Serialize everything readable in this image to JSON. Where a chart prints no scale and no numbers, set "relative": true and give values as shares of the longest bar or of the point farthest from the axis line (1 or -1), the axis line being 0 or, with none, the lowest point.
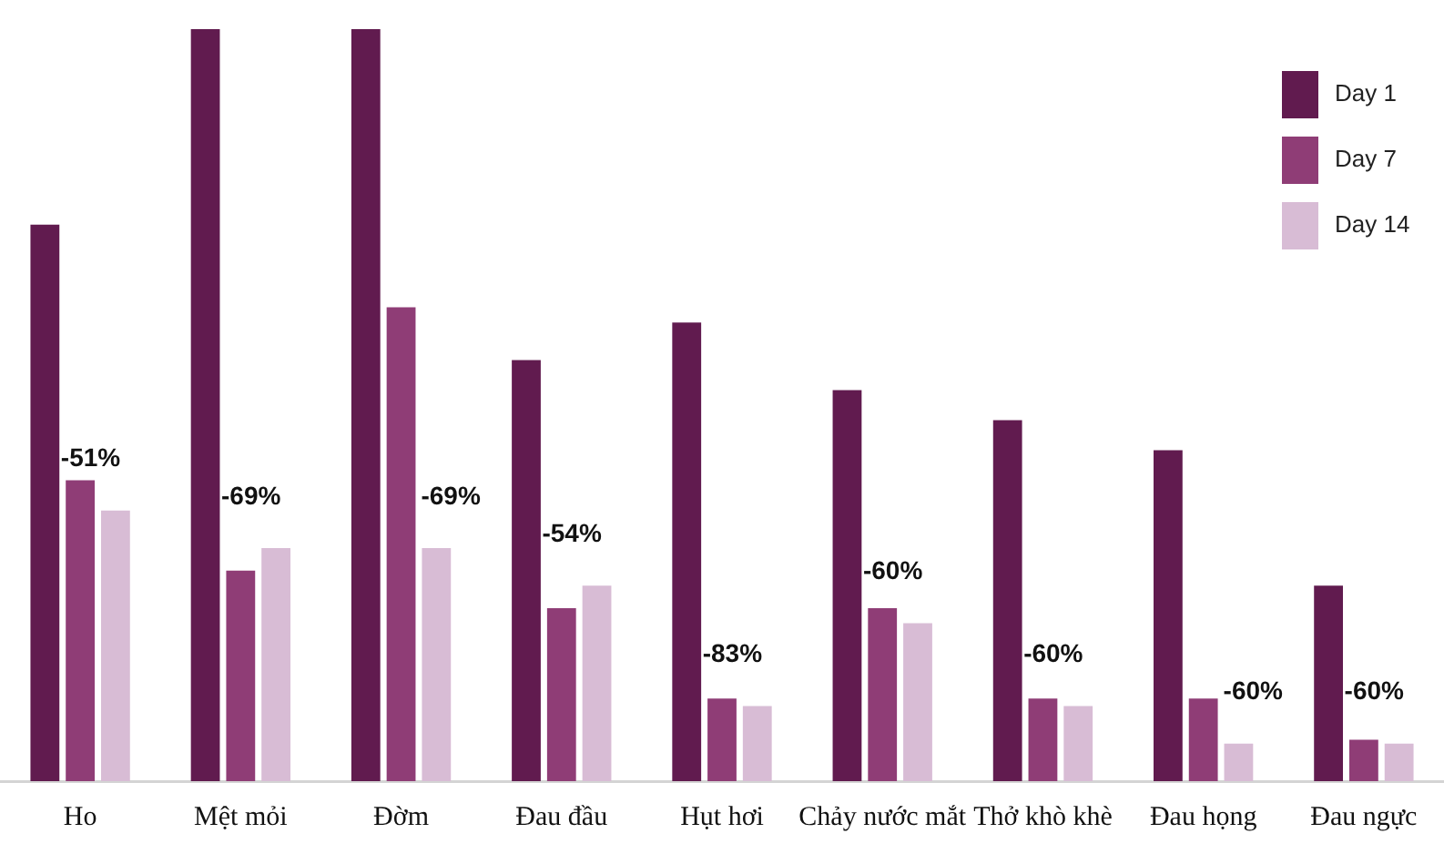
{
  "chart_data": {
    "type": "bar",
    "relative": true,
    "legend": "top right",
    "categories": [
      "Ho",
      "Mệt mỏi",
      "Đờm",
      "Đau đầu",
      "Hụt hơi",
      "Chảy nước mắt",
      "Thở khò khè",
      "Đau họng",
      "Đau ngực"
    ],
    "series": [
      {
        "name": "Day 1",
        "color": "#611b4f",
        "values": [
          0.74,
          1,
          1,
          0.56,
          0.61,
          0.52,
          0.48,
          0.44,
          0.26
        ]
      },
      {
        "name": "Day 7",
        "color": "#8f3d76",
        "values": [
          0.4,
          0.28,
          0.63,
          0.23,
          0.11,
          0.23,
          0.11,
          0.11,
          0.055
        ]
      },
      {
        "name": "Day 14",
        "color": "#d8bcd5",
        "values": [
          0.36,
          0.31,
          0.31,
          0.26,
          0.1,
          0.21,
          0.1,
          0.05,
          0.05
        ]
      }
    ],
    "annotations": [
      "-51%",
      "-69%",
      "-69%",
      "-54%",
      "-83%",
      "-60%",
      "-60%",
      "-60%",
      "-60%"
    ]
  }
}
